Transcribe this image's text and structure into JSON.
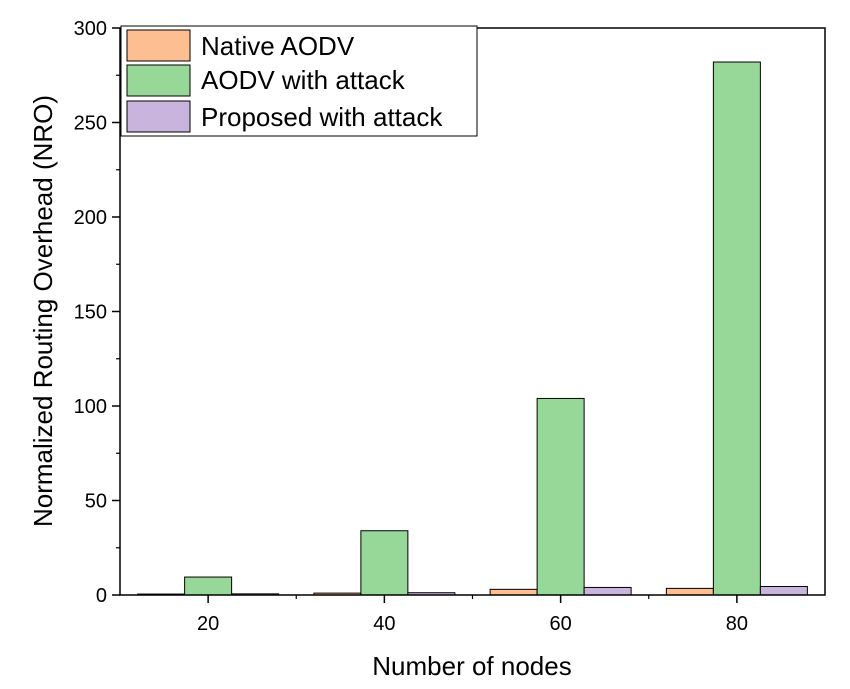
{
  "chart_data": {
    "type": "bar",
    "title": "",
    "xlabel": "Number of nodes",
    "ylabel": "Normalized Routing Overhead (NRO)",
    "categories": [
      "20",
      "40",
      "60",
      "80"
    ],
    "ylim": [
      0,
      300
    ],
    "yticks": [
      0,
      50,
      100,
      150,
      200,
      250,
      300
    ],
    "legend_position": "top-left",
    "grid": false,
    "series": [
      {
        "name": "Native AODV",
        "color": "#FDBE92",
        "values": [
          0.5,
          1,
          3,
          3.5
        ]
      },
      {
        "name": "AODV with attack",
        "color": "#97D898",
        "values": [
          9.5,
          34,
          104,
          282
        ]
      },
      {
        "name": "Proposed with attack",
        "color": "#C9B4DE",
        "values": [
          0.6,
          1.2,
          4,
          4.5
        ]
      }
    ]
  }
}
